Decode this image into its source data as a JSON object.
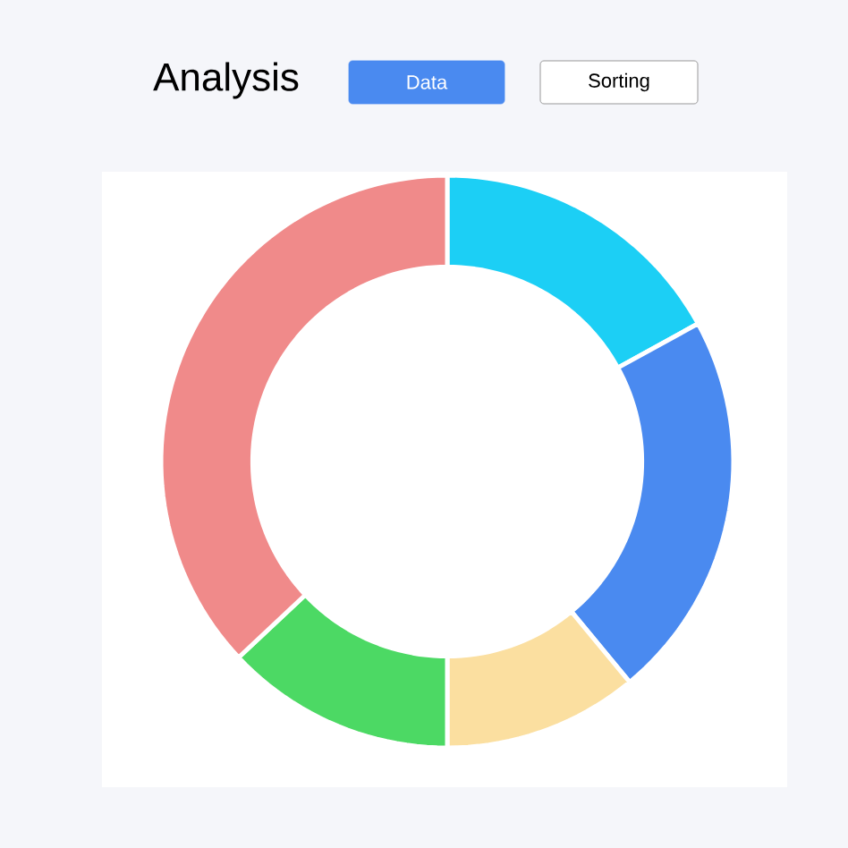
{
  "chart_data": {
    "type": "donut",
    "title": "Analysis",
    "annotations": [
      "Data",
      "Sorting"
    ],
    "categories": [
      null,
      null,
      null,
      null,
      null
    ],
    "values": [
      17,
      22,
      11,
      13,
      37
    ],
    "colors": [
      "#1ccff5",
      "#4a8af0",
      "#fbdfa0",
      "#4cd964",
      "#f08a8a"
    ]
  }
}
